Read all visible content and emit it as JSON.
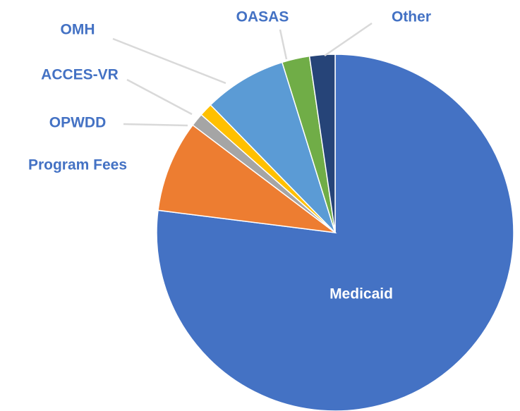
{
  "chart_data": {
    "type": "pie",
    "categories": [
      "Medicaid",
      "Program Fees",
      "OPWDD",
      "ACCES-VR",
      "OMH",
      "OASAS",
      "Other"
    ],
    "values": [
      77,
      8.3,
      1.2,
      1.2,
      7.5,
      2.5,
      2.3
    ],
    "colors": [
      "#4472c4",
      "#ed7d31",
      "#a5a5a5",
      "#ffc000",
      "#5b9bd5",
      "#70ad47",
      "#264478"
    ]
  }
}
